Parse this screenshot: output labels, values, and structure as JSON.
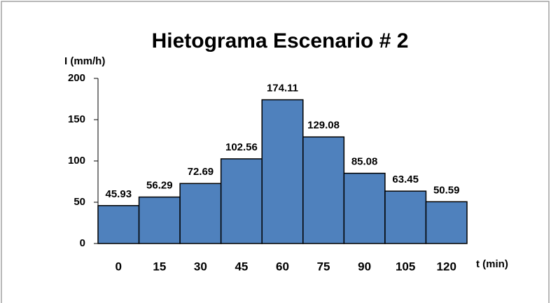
{
  "chart_data": {
    "type": "bar",
    "title": "Hietograma Escenario  # 2",
    "y_label": "I (mm/h)",
    "x_label": "t (min)",
    "categories": [
      "0",
      "15",
      "30",
      "45",
      "60",
      "75",
      "90",
      "105",
      "120"
    ],
    "values": [
      45.93,
      56.29,
      72.69,
      102.56,
      174.11,
      129.08,
      85.08,
      63.45,
      50.59
    ],
    "color": "#4f81bd",
    "ylim": [
      0,
      200
    ],
    "yticks": [
      0,
      50,
      100,
      150,
      200
    ],
    "grid": false
  }
}
